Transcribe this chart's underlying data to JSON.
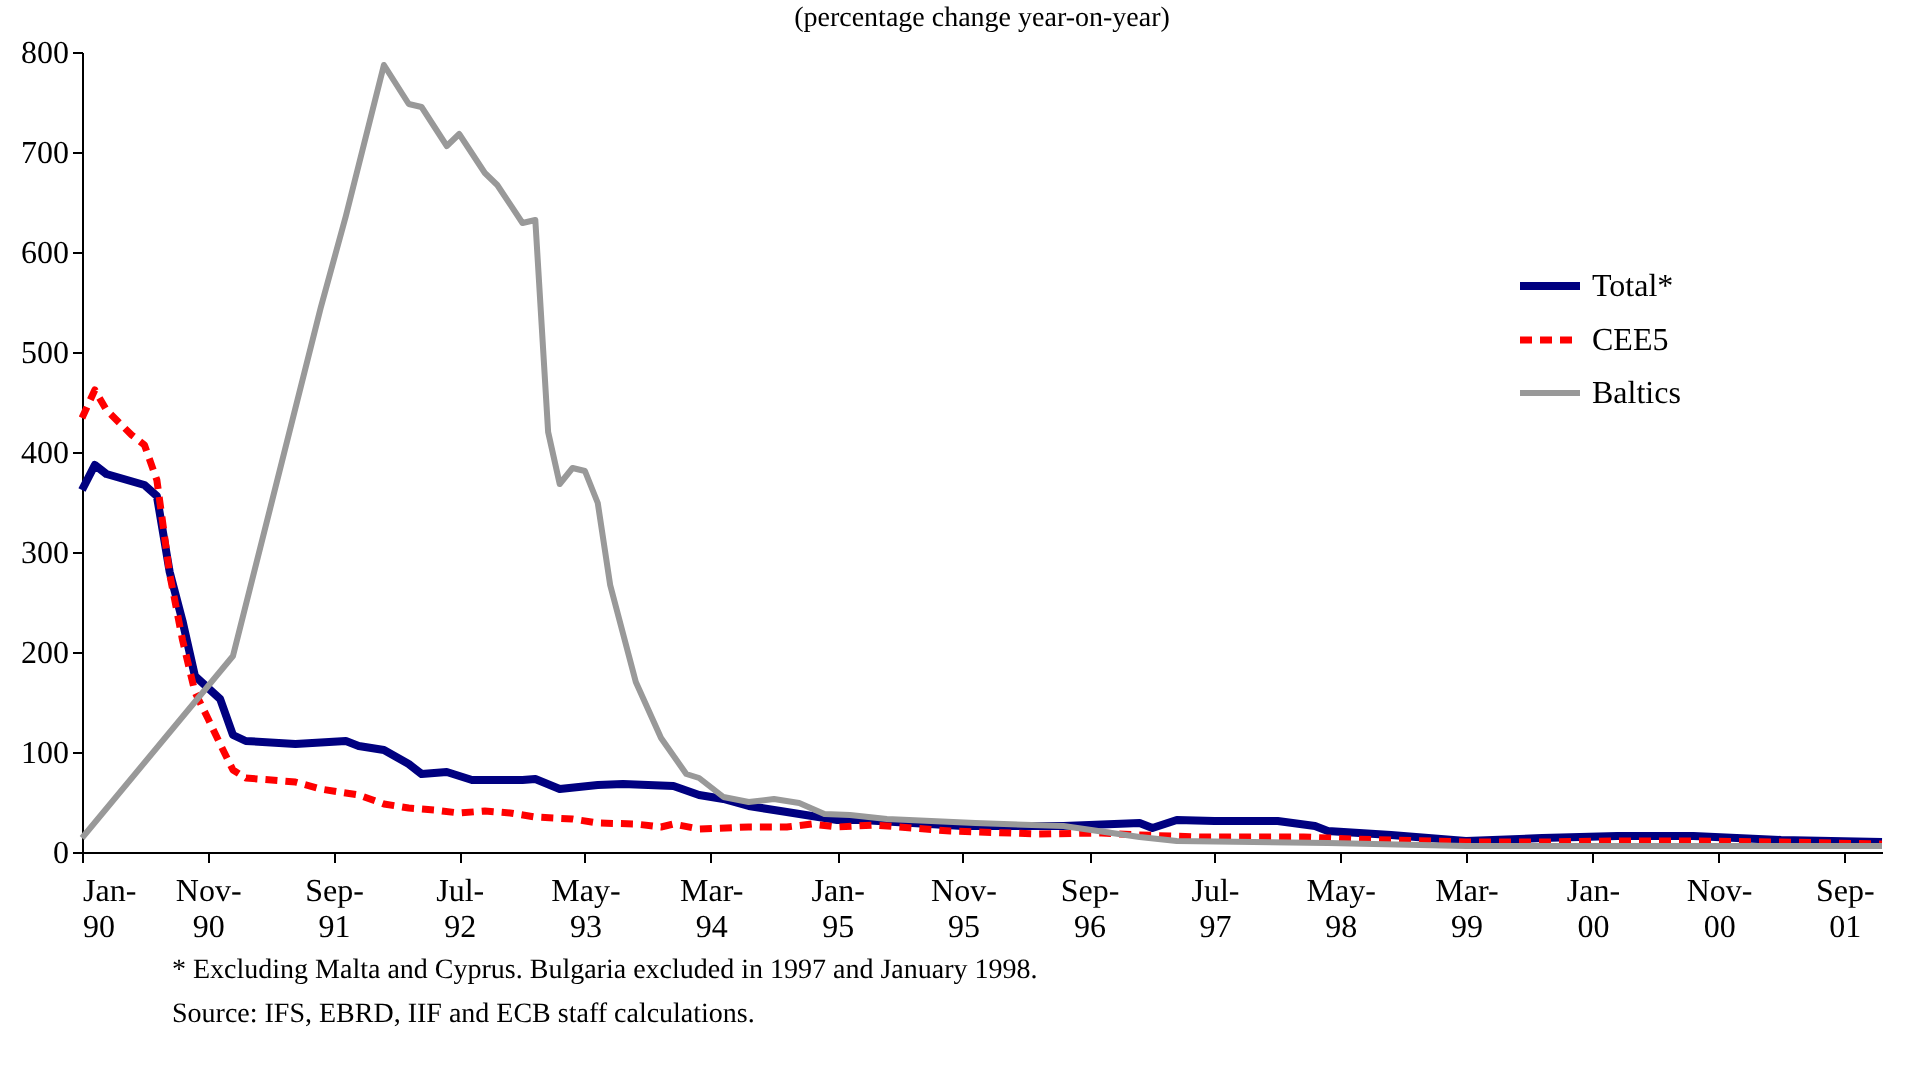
{
  "chart_data": {
    "type": "line",
    "title": "(percentage change year-on-year)",
    "xlim": [
      "1990-01",
      "2001-12"
    ],
    "xticks": [
      {
        "value": "1990-01",
        "label": "Jan-90"
      },
      {
        "value": "1990-11",
        "label": "Nov-90"
      },
      {
        "value": "1991-09",
        "label": "Sep-91"
      },
      {
        "value": "1992-07",
        "label": "Jul-92"
      },
      {
        "value": "1993-05",
        "label": "May-93"
      },
      {
        "value": "1994-03",
        "label": "Mar-94"
      },
      {
        "value": "1995-01",
        "label": "Jan-95"
      },
      {
        "value": "1995-11",
        "label": "Nov-95"
      },
      {
        "value": "1996-09",
        "label": "Sep-96"
      },
      {
        "value": "1997-07",
        "label": "Jul-97"
      },
      {
        "value": "1998-05",
        "label": "May-98"
      },
      {
        "value": "1999-03",
        "label": "Mar-99"
      },
      {
        "value": "2000-01",
        "label": "Jan-00"
      },
      {
        "value": "2000-11",
        "label": "Nov-00"
      },
      {
        "value": "2001-09",
        "label": "Sep-01"
      }
    ],
    "ylim": [
      0,
      800
    ],
    "yticks": [
      0,
      100,
      200,
      300,
      400,
      500,
      600,
      700,
      800
    ],
    "grid": false,
    "legend": "top right",
    "marker": "none",
    "series": [
      {
        "name": "Total*",
        "color": "#000080",
        "line_style": "solid",
        "x": [
          "1990-01",
          "1990-02",
          "1990-03",
          "1990-06",
          "1990-07",
          "1990-08",
          "1990-09",
          "1990-10",
          "1990-12",
          "1991-01",
          "1991-02",
          "1991-06",
          "1991-10",
          "1991-11",
          "1992-01",
          "1992-03",
          "1992-04",
          "1992-06",
          "1992-08",
          "1992-12",
          "1993-01",
          "1993-03",
          "1993-06",
          "1993-08",
          "1993-12",
          "1994-02",
          "1994-04",
          "1994-06",
          "1994-09",
          "1995-01",
          "1995-03",
          "1995-07",
          "1995-11",
          "1996-07",
          "1996-09",
          "1997-01",
          "1997-02",
          "1997-04",
          "1997-07",
          "1997-12",
          "1998-03",
          "1998-04",
          "1998-09",
          "1999-03",
          "1999-09",
          "2000-03",
          "2000-09",
          "2001-04",
          "2001-12"
        ],
        "values": [
          362,
          387,
          378,
          367,
          356,
          280,
          231,
          176,
          153,
          117,
          111,
          108,
          111,
          106,
          102,
          88,
          78,
          80,
          72,
          72,
          73,
          63,
          67,
          68,
          66,
          57,
          53,
          46,
          40,
          32,
          32,
          29,
          26,
          26,
          27,
          29,
          24,
          32,
          31,
          31,
          26,
          21,
          17,
          11,
          14,
          16,
          16,
          12,
          10
        ]
      },
      {
        "name": "CEE5",
        "color": "#ff0000",
        "line_style": "dashed",
        "x": [
          "1990-01",
          "1990-02",
          "1990-03",
          "1990-05",
          "1990-06",
          "1990-07",
          "1990-08",
          "1990-09",
          "1990-10",
          "1990-11",
          "1990-12",
          "1991-01",
          "1991-02",
          "1991-06",
          "1991-08",
          "1991-11",
          "1992-01",
          "1992-03",
          "1992-05",
          "1992-07",
          "1992-09",
          "1992-11",
          "1993-01",
          "1993-04",
          "1993-06",
          "1993-09",
          "1993-11",
          "1993-12",
          "1994-02",
          "1994-06",
          "1994-09",
          "1994-11",
          "1995-01",
          "1995-04",
          "1995-10",
          "1996-05",
          "1996-10",
          "1997-01",
          "1997-06",
          "1998-02",
          "1998-06",
          "1999-03",
          "1999-09",
          "2000-03",
          "2000-09",
          "2001-04",
          "2001-12"
        ],
        "values": [
          434,
          462,
          442,
          417,
          407,
          372,
          278,
          212,
          160,
          134,
          108,
          82,
          74,
          70,
          63,
          57,
          48,
          44,
          42,
          39,
          41,
          39,
          35,
          33,
          29,
          28,
          25,
          28,
          23,
          25,
          25,
          28,
          25,
          27,
          21,
          18,
          19,
          17,
          15,
          15,
          13,
          10,
          10,
          11,
          11,
          10,
          8
        ]
      },
      {
        "name": "Baltics",
        "color": "#999999",
        "line_style": "solid",
        "x": [
          "1990-01",
          "1991-01",
          "1991-08",
          "1991-10",
          "1992-01",
          "1992-03",
          "1992-04",
          "1992-06",
          "1992-07",
          "1992-09",
          "1992-10",
          "1992-12",
          "1993-01",
          "1993-02",
          "1993-03",
          "1993-04",
          "1993-05",
          "1993-06",
          "1993-07",
          "1993-09",
          "1993-11",
          "1994-01",
          "1994-02",
          "1994-04",
          "1994-06",
          "1994-08",
          "1994-10",
          "1994-12",
          "1995-02",
          "1995-05",
          "1995-12",
          "1996-07",
          "1997-01",
          "1997-04",
          "1998-04",
          "1999-03",
          "2001-12"
        ],
        "values": [
          14,
          196,
          544,
          636,
          787,
          748,
          745,
          706,
          718,
          679,
          667,
          629,
          632,
          420,
          368,
          384,
          381,
          349,
          267,
          170,
          114,
          78,
          74,
          55,
          50,
          53,
          49,
          38,
          37,
          33,
          29,
          26,
          15,
          11,
          9,
          6,
          6
        ]
      }
    ],
    "annotations": [
      "* Excluding Malta and Cyprus. Bulgaria excluded in 1997 and January 1998.",
      "Source: IFS, EBRD, IIF and ECB staff calculations."
    ]
  }
}
